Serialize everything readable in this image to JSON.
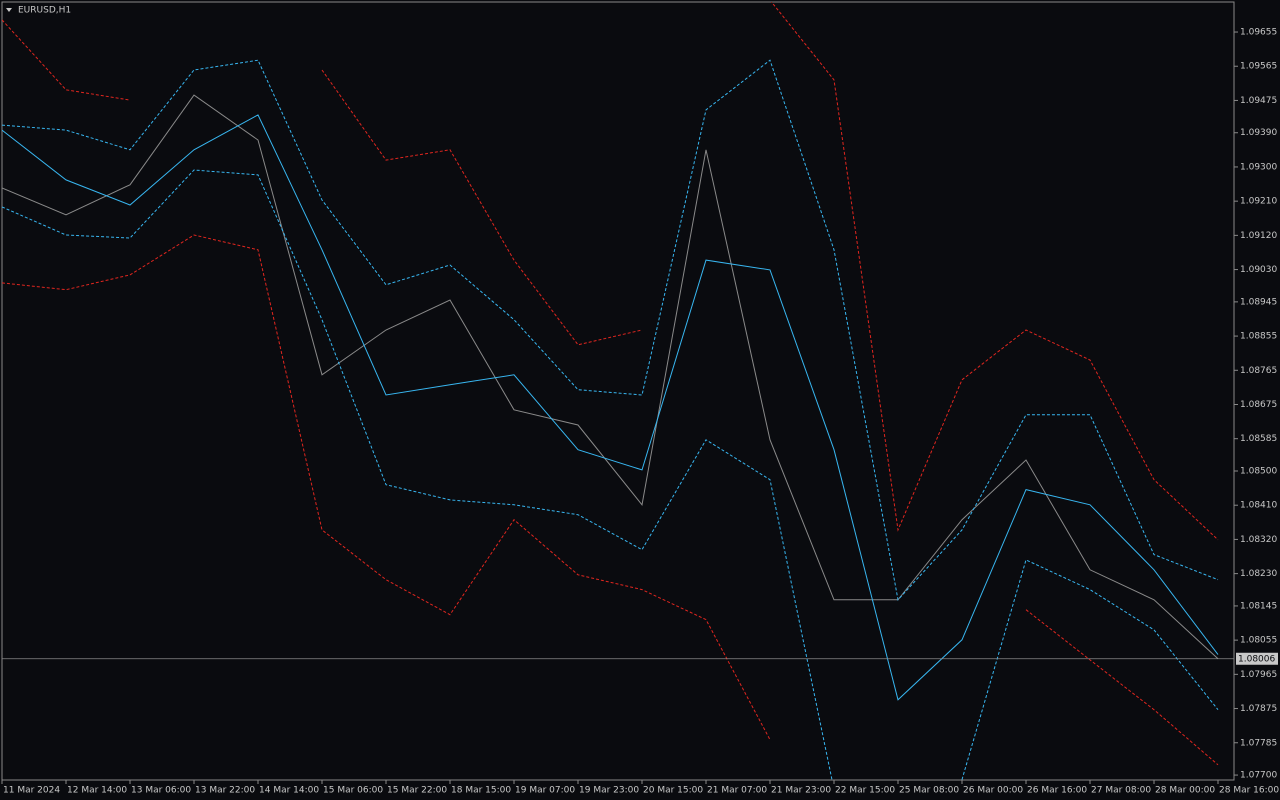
{
  "chart_data": {
    "type": "line",
    "title": "EURUSD,H1",
    "x": [
      0,
      16,
      32,
      48,
      64,
      80,
      96,
      112,
      128,
      144,
      160,
      176,
      192,
      208,
      224,
      240,
      256,
      272,
      288,
      304
    ],
    "xlim": [
      0,
      308
    ],
    "xticks": [
      {
        "value": 0,
        "label": "11 Mar 2024"
      },
      {
        "value": 16,
        "label": "12 Mar 14:00"
      },
      {
        "value": 32,
        "label": "13 Mar 06:00"
      },
      {
        "value": 48,
        "label": "13 Mar 22:00"
      },
      {
        "value": 64,
        "label": "14 Mar 14:00"
      },
      {
        "value": 80,
        "label": "15 Mar 06:00"
      },
      {
        "value": 96,
        "label": "15 Mar 22:00"
      },
      {
        "value": 112,
        "label": "18 Mar 15:00"
      },
      {
        "value": 128,
        "label": "19 Mar 07:00"
      },
      {
        "value": 144,
        "label": "19 Mar 23:00"
      },
      {
        "value": 160,
        "label": "20 Mar 15:00"
      },
      {
        "value": 176,
        "label": "21 Mar 07:00"
      },
      {
        "value": 192,
        "label": "21 Mar 23:00"
      },
      {
        "value": 208,
        "label": "22 Mar 15:00"
      },
      {
        "value": 224,
        "label": "25 Mar 08:00"
      },
      {
        "value": 240,
        "label": "26 Mar 00:00"
      },
      {
        "value": 256,
        "label": "26 Mar 16:00"
      },
      {
        "value": 272,
        "label": "27 Mar 08:00"
      },
      {
        "value": 288,
        "label": "28 Mar 00:00"
      },
      {
        "value": 304,
        "label": "28 Mar 16:00"
      }
    ],
    "ylim": [
      1.07687,
      1.09734
    ],
    "yticks": [
      1.09655,
      1.09565,
      1.09475,
      {
        "value": 1.0939,
        "label": "1.09390"
      },
      {
        "value": 1.093,
        "label": "1.09300"
      },
      {
        "value": 1.0921,
        "label": "1.09210"
      },
      {
        "value": 1.0912,
        "label": "1.09120"
      },
      {
        "value": 1.0903,
        "label": "1.09030"
      },
      1.08945,
      1.08855,
      1.08765,
      1.08675,
      1.08585,
      {
        "value": 1.085,
        "label": "1.08500"
      },
      {
        "value": 1.0841,
        "label": "1.08410"
      },
      {
        "value": 1.0832,
        "label": "1.08320"
      },
      {
        "value": 1.0823,
        "label": "1.08230"
      },
      1.08145,
      1.08055,
      1.07965,
      1.07875,
      1.07785,
      {
        "value": 1.077,
        "label": "1.07700"
      }
    ],
    "current_price": 1.08006,
    "series": [
      {
        "color": "#8a8a8a",
        "style": "solid",
        "values": [
          1.09245,
          1.09174,
          1.09253,
          1.09489,
          1.09371,
          1.08753,
          1.08871,
          1.0895,
          1.08661,
          1.08621,
          1.08411,
          1.09345,
          1.08582,
          1.08161,
          1.08161,
          1.08372,
          1.08529,
          1.0824,
          1.08161,
          1.08006
        ]
      },
      {
        "color": "#38b6f0",
        "style": "solid",
        "values": [
          1.09397,
          1.09266,
          1.092,
          1.09345,
          1.09437,
          1.09082,
          1.087,
          1.08727,
          1.08753,
          1.08556,
          1.08503,
          1.09055,
          1.09029,
          1.08556,
          1.07898,
          1.08056,
          1.08451,
          1.08411,
          1.0824,
          1.08017
        ]
      },
      {
        "color": "#38b6f0",
        "style": "dashed",
        "values": [
          1.0941,
          1.09397,
          1.09345,
          1.09555,
          1.09581,
          1.09213,
          1.0899,
          1.09042,
          1.08898,
          1.08714,
          1.087,
          1.0945,
          1.09581,
          1.09082,
          1.08161,
          1.08345,
          1.08648,
          1.08648,
          1.0828,
          1.08214
        ]
      },
      {
        "color": "#38b6f0",
        "style": "dashed",
        "values": [
          1.09195,
          1.09121,
          1.09113,
          1.09292,
          1.09279,
          1.08898,
          1.08464,
          1.08424,
          1.08411,
          1.08385,
          1.08293,
          1.08582,
          1.08477,
          1.07662,
          null,
          1.07688,
          1.08266,
          1.08188,
          1.08082,
          1.07872
        ]
      },
      {
        "color": "#e0261f",
        "style": "dashed",
        "values": [
          1.09687,
          1.09503,
          1.09476,
          null,
          null,
          1.09555,
          1.09318,
          1.09345,
          1.09055,
          1.08832,
          1.08871,
          null,
          1.09739,
          1.09529,
          1.08345,
          1.0874,
          1.08871,
          1.08792,
          1.08477,
          1.08319
        ]
      },
      {
        "color": "#e0261f",
        "style": "dashed",
        "values": [
          1.08995,
          1.08977,
          1.09016,
          1.09121,
          1.09082,
          1.08345,
          1.08214,
          1.08122,
          1.08372,
          1.08227,
          1.08188,
          1.08109,
          1.07793,
          null,
          null,
          null,
          1.08135,
          1.08003,
          1.07872,
          1.07727
        ]
      }
    ]
  }
}
